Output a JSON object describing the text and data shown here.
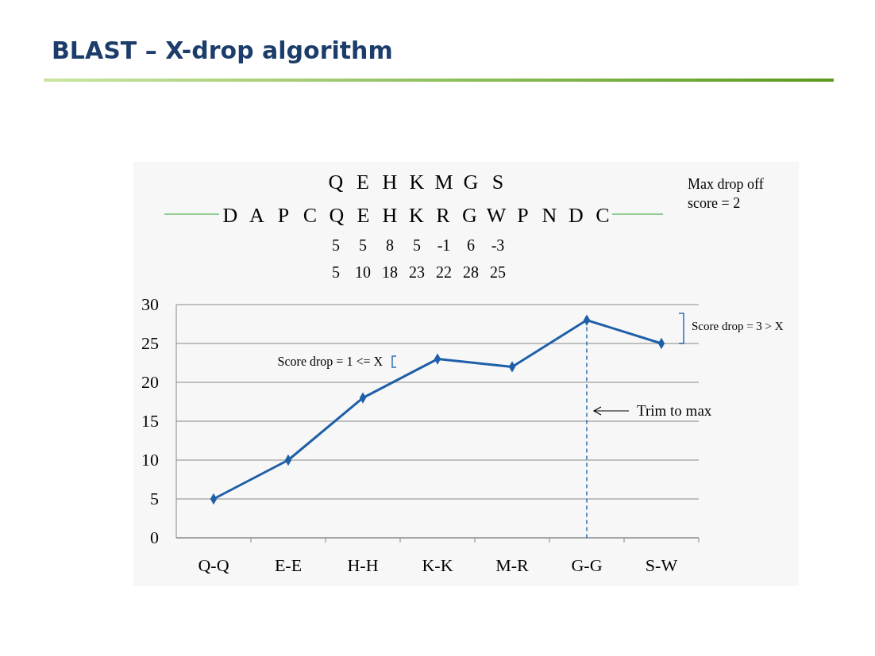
{
  "chart_data": {
    "type": "line",
    "title": "BLAST – X-drop algorithm",
    "categories": [
      "Q-Q",
      "E-E",
      "H-H",
      "K-K",
      "M-R",
      "G-G",
      "S-W"
    ],
    "series": [
      {
        "color": "#1f5fa8",
        "values": [
          5,
          10,
          18,
          23,
          22,
          28,
          25
        ]
      }
    ],
    "ylim": [
      0,
      30
    ],
    "yticks": [
      0,
      5,
      10,
      15,
      20,
      25,
      30
    ],
    "grid": "y",
    "marker": "diamond",
    "line_style": "solid",
    "ref_lines": [
      {
        "axis": "x",
        "value": "G-G",
        "line_style": "dashed",
        "color": "#2e6db4"
      }
    ],
    "annotations": [
      "Q E H K M G S",
      "D A P C Q E H K R G W P N D C",
      "5 5 8 5 -1 6 -3",
      "5 10 18 23 22 28 25",
      "Max drop off score = 2",
      "Score drop = 1 <= X",
      "Score drop = 3 > X",
      "Trim to max"
    ]
  }
}
